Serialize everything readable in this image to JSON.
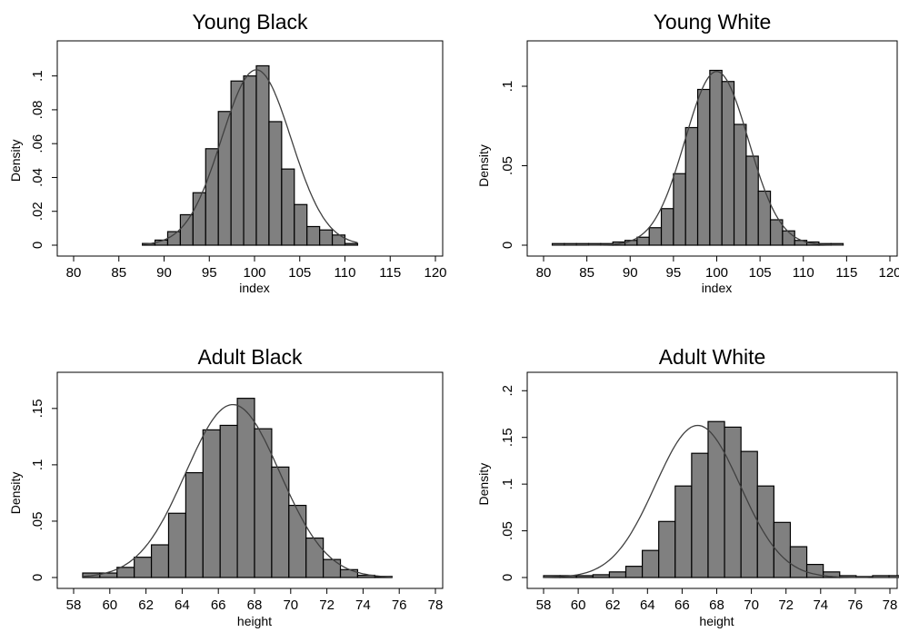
{
  "chart_data": [
    {
      "type": "bar",
      "title": "Young Black",
      "xlabel": "index",
      "ylabel": "Density",
      "xlim": [
        80,
        120
      ],
      "xticks": [
        "80",
        "85",
        "90",
        "95",
        "100",
        "105",
        "110",
        "115",
        "120"
      ],
      "ylim": [
        0,
        0.11
      ],
      "yticks": [
        "0",
        ".02",
        ".04",
        ".06",
        ".08",
        ".1"
      ],
      "bin_width": 1.4,
      "bin_start": 87.6,
      "values": [
        0.001,
        0.003,
        0.008,
        0.018,
        0.031,
        0.057,
        0.079,
        0.097,
        0.1,
        0.106,
        0.073,
        0.045,
        0.024,
        0.011,
        0.009,
        0.006,
        0.001
      ],
      "normal_curve": {
        "mean": 100.2,
        "sd": 3.85
      },
      "colors": {
        "bar_fill": "#808080",
        "bar_edge": "#000000",
        "curve": "#404040"
      }
    },
    {
      "type": "bar",
      "title": "Young White",
      "xlabel": "index",
      "ylabel": "Density",
      "xlim": [
        80,
        120
      ],
      "xticks": [
        "80",
        "85",
        "90",
        "95",
        "100",
        "105",
        "110",
        "115",
        "120"
      ],
      "ylim": [
        0,
        0.12
      ],
      "yticks": [
        "0",
        ".05",
        ".1"
      ],
      "bin_width": 1.4,
      "bin_start": 81,
      "values": [
        0.001,
        0.001,
        0.001,
        0.001,
        0.001,
        0.002,
        0.003,
        0.005,
        0.011,
        0.023,
        0.045,
        0.074,
        0.098,
        0.11,
        0.103,
        0.076,
        0.056,
        0.034,
        0.016,
        0.009,
        0.003,
        0.002,
        0.001,
        0.001
      ],
      "normal_curve": {
        "mean": 100,
        "sd": 3.65
      },
      "colors": {
        "bar_fill": "#808080",
        "bar_edge": "#000000",
        "curve": "#404040"
      }
    },
    {
      "type": "bar",
      "title": "Adult Black",
      "xlabel": "height",
      "ylabel": "Density",
      "xlim": [
        58,
        78
      ],
      "xticks": [
        "58",
        "60",
        "62",
        "64",
        "66",
        "68",
        "70",
        "72",
        "74",
        "76",
        "78"
      ],
      "ylim": [
        0,
        0.17
      ],
      "yticks": [
        "0",
        ".05",
        ".1",
        ".15"
      ],
      "bin_width": 0.95,
      "bin_start": 58.5,
      "values": [
        0.004,
        0.004,
        0.009,
        0.018,
        0.029,
        0.057,
        0.093,
        0.131,
        0.135,
        0.159,
        0.132,
        0.098,
        0.064,
        0.035,
        0.016,
        0.007,
        0.002,
        0.001
      ],
      "normal_curve": {
        "mean": 66.8,
        "sd": 2.6
      },
      "colors": {
        "bar_fill": "#808080",
        "bar_edge": "#000000",
        "curve": "#404040"
      }
    },
    {
      "type": "bar",
      "title": "Adult White",
      "xlabel": "height",
      "ylabel": "Density",
      "xlim": [
        58,
        78
      ],
      "xticks": [
        "58",
        "60",
        "62",
        "64",
        "66",
        "68",
        "70",
        "72",
        "74",
        "76",
        "78"
      ],
      "ylim": [
        0,
        0.21
      ],
      "yticks": [
        "0",
        ".05",
        ".1",
        ".15",
        ".2"
      ],
      "bin_width": 0.95,
      "bin_start": 58,
      "values": [
        0.002,
        0.002,
        0.002,
        0.003,
        0.006,
        0.012,
        0.029,
        0.06,
        0.098,
        0.133,
        0.167,
        0.161,
        0.135,
        0.098,
        0.059,
        0.033,
        0.014,
        0.006,
        0.002,
        0.001,
        0.002,
        0.002
      ],
      "normal_curve": {
        "mean": 66.9,
        "sd": 2.45
      },
      "colors": {
        "bar_fill": "#808080",
        "bar_edge": "#000000",
        "curve": "#404040"
      }
    }
  ]
}
